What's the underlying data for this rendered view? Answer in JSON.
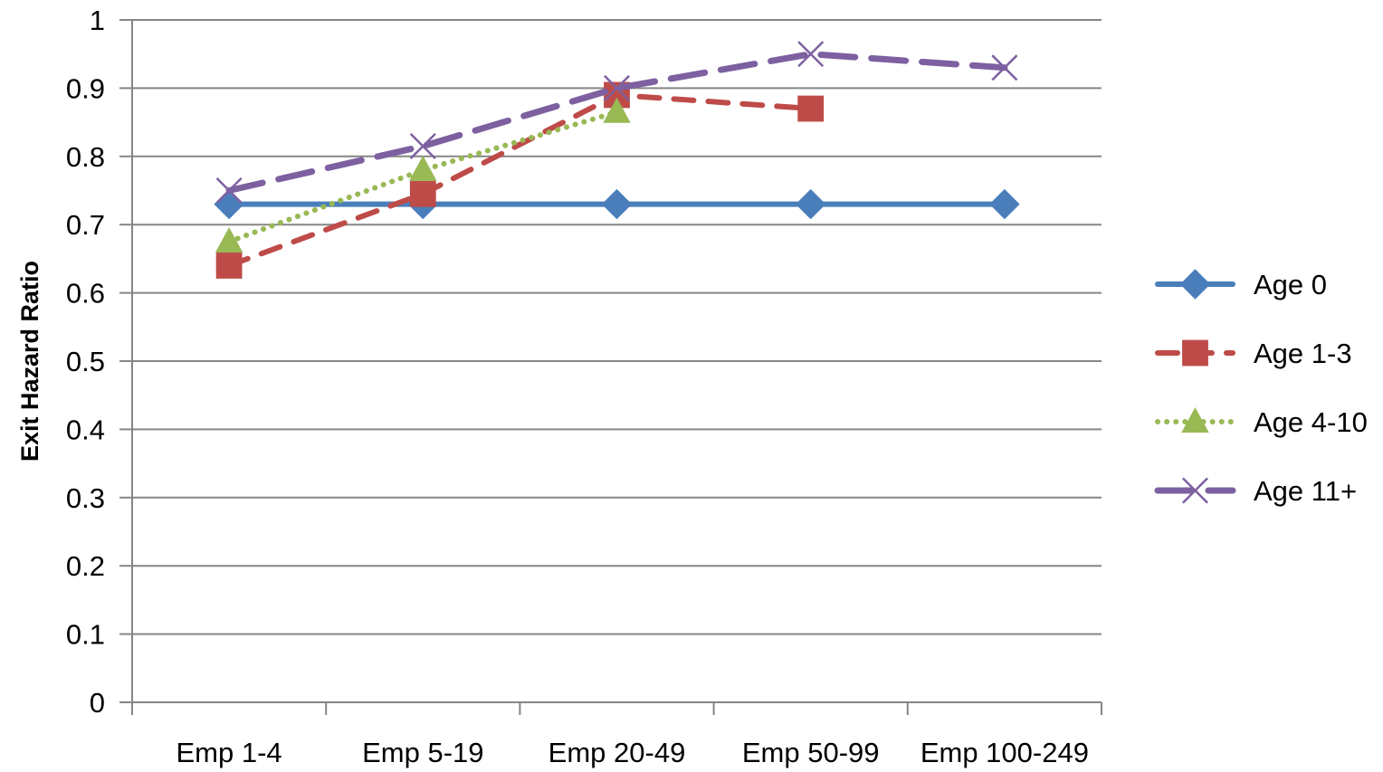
{
  "chart_data": {
    "type": "line",
    "title": "",
    "xlabel": "",
    "ylabel": "Exit Hazard Ratio",
    "ylim": [
      0,
      1
    ],
    "yticks": [
      "0",
      "0.1",
      "0.2",
      "0.3",
      "0.4",
      "0.5",
      "0.6",
      "0.7",
      "0.8",
      "0.9",
      "1"
    ],
    "categories": [
      "Emp 1-4",
      "Emp 5-19",
      "Emp 20-49",
      "Emp 50-99",
      "Emp 100-249"
    ],
    "grid": "horizontal",
    "legend_position": "right",
    "series": [
      {
        "name": "Age 0",
        "color": "#4A7EBB",
        "line_style": "solid",
        "marker": "diamond",
        "values": [
          0.73,
          0.73,
          0.73,
          0.73,
          0.73
        ]
      },
      {
        "name": "Age 1-3",
        "color": "#BE4B48",
        "line_style": "dashed",
        "marker": "square",
        "values": [
          0.64,
          0.745,
          0.89,
          0.87,
          null
        ]
      },
      {
        "name": "Age 4-10",
        "color": "#98B954",
        "line_style": "dotted",
        "marker": "triangle",
        "values": [
          0.675,
          0.78,
          0.865,
          null,
          null
        ]
      },
      {
        "name": "Age 11+",
        "color": "#7D60A0",
        "line_style": "long-dashed",
        "marker": "x",
        "values": [
          0.75,
          0.815,
          0.9,
          0.95,
          0.93
        ]
      }
    ]
  }
}
